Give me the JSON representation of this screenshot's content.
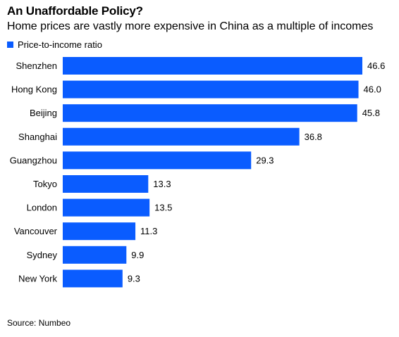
{
  "colors": {
    "bar": "#0a5cff"
  },
  "chart_data": {
    "type": "bar",
    "orientation": "horizontal",
    "title": "An Unaffordable Policy?",
    "subtitle": "Home prices are vastly more expensive in China as a multiple of incomes",
    "legend": "Price-to-income ratio",
    "legend_position": "top-left",
    "categories": [
      "Shenzhen",
      "Hong Kong",
      "Beijing",
      "Shanghai",
      "Guangzhou",
      "Tokyo",
      "London",
      "Vancouver",
      "Sydney",
      "New York"
    ],
    "values": [
      46.6,
      46.0,
      45.8,
      36.8,
      29.3,
      13.3,
      13.5,
      11.3,
      9.9,
      9.3
    ],
    "value_labels": [
      "46.6",
      "46.0",
      "45.8",
      "36.8",
      "29.3",
      "13.3",
      "13.5",
      "11.3",
      "9.9",
      "9.3"
    ],
    "xlim": [
      0,
      46.6
    ],
    "grid": false,
    "source": "Source: Numbeo"
  }
}
